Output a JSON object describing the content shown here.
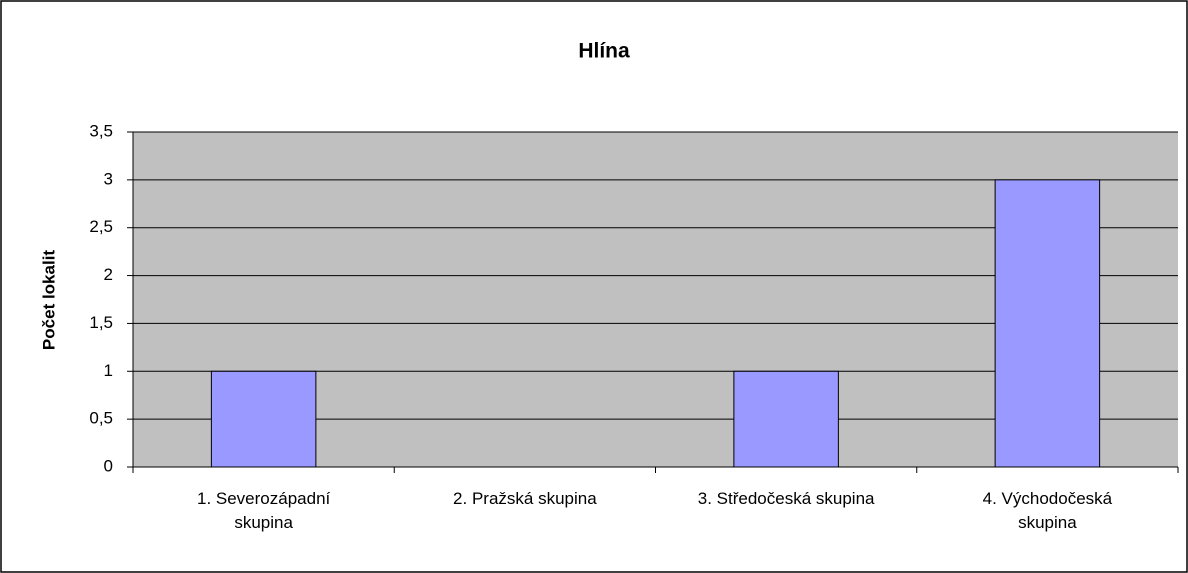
{
  "chart_data": {
    "type": "bar",
    "title": "Hlína",
    "y_label": "Počet lokalit",
    "categories": [
      "1. Severozápadní skupina",
      "2. Pražská skupina",
      "3. Středočeská skupina",
      "4. Východočeská skupina"
    ],
    "values": [
      1,
      0,
      1,
      3
    ],
    "color": "#9999ff",
    "ylim": [
      0,
      3.5
    ],
    "yticks": [
      0,
      {
        "value": 0.5,
        "label": "0,5"
      },
      1,
      {
        "value": 1.5,
        "label": "1,5"
      },
      2,
      {
        "value": 2.5,
        "label": "2,5"
      },
      3,
      {
        "value": 3.5,
        "label": "3,5"
      }
    ],
    "grid": true
  }
}
